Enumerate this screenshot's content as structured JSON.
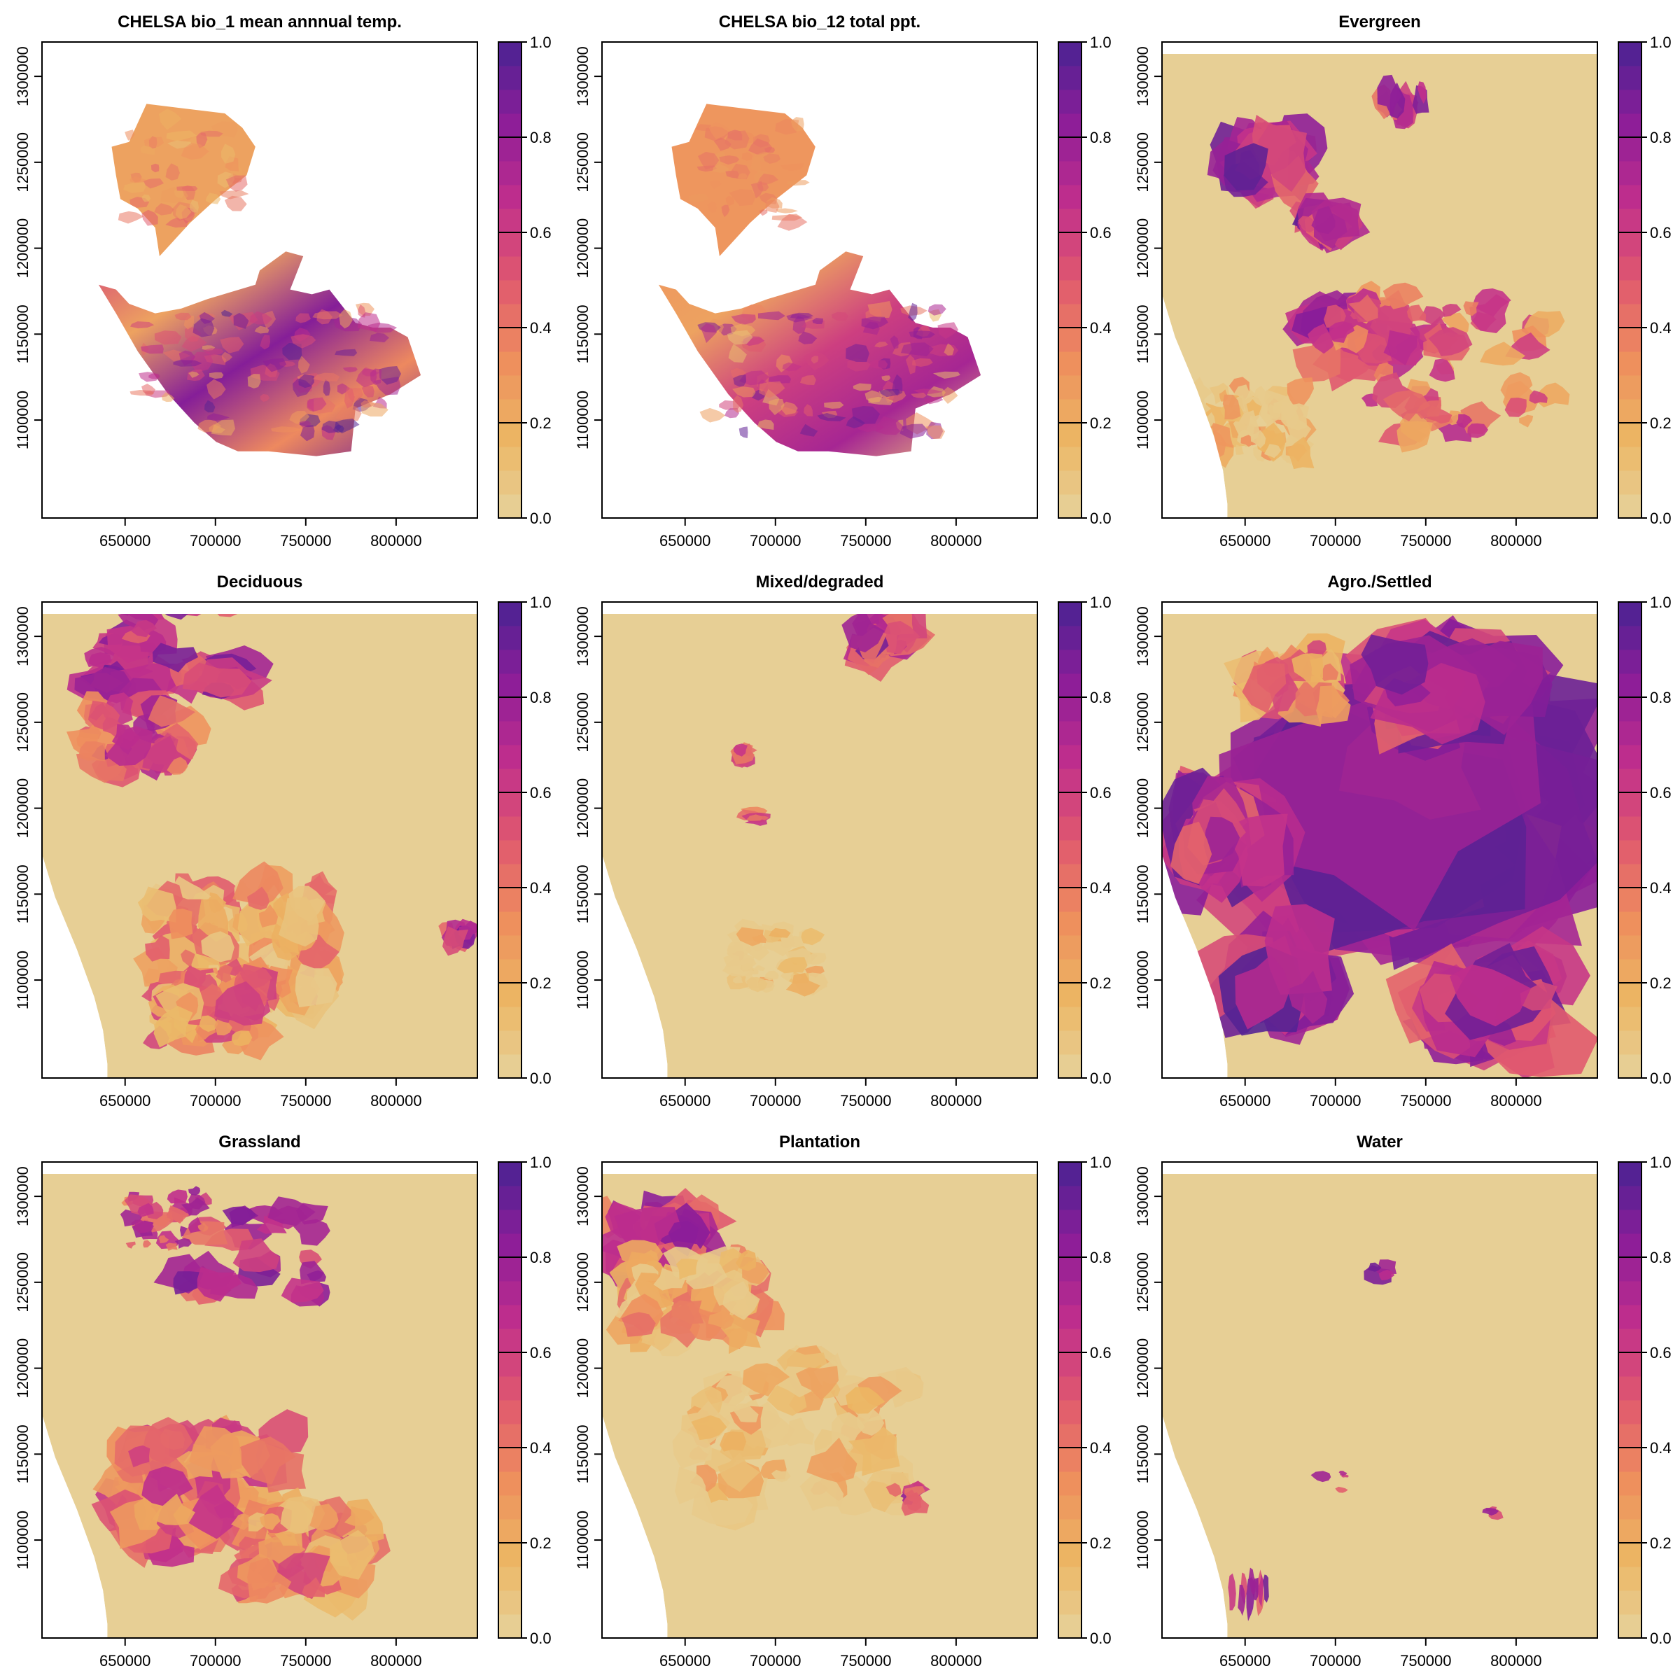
{
  "figure": {
    "panels": [
      {
        "title": "CHELSA bio_1 mean annnual temp.",
        "kind": "climate-temp"
      },
      {
        "title": "CHELSA bio_12 total ppt.",
        "kind": "climate-ppt"
      },
      {
        "title": "Evergreen",
        "kind": "landcover"
      },
      {
        "title": "Deciduous",
        "kind": "landcover"
      },
      {
        "title": "Mixed/degraded",
        "kind": "landcover"
      },
      {
        "title": "Agro./Settled",
        "kind": "landcover"
      },
      {
        "title": "Grassland",
        "kind": "landcover"
      },
      {
        "title": "Plantation",
        "kind": "landcover"
      },
      {
        "title": "Water",
        "kind": "landcover"
      }
    ]
  },
  "chart_data": {
    "type": "heatmap",
    "grid": "off",
    "x_ticks": [
      "650000",
      "700000",
      "750000",
      "800000"
    ],
    "y_ticks": [
      "1100000",
      "1150000",
      "1200000",
      "1250000",
      "1300000"
    ],
    "xlim": [
      604000,
      845000
    ],
    "ylim": [
      1043000,
      1320000
    ],
    "colorbar": {
      "range": [
        0.0,
        1.0
      ],
      "tick_labels": [
        "0.0",
        "0.2",
        "0.4",
        "0.6",
        "0.8",
        "1.0"
      ],
      "colors": [
        "#e6d29c",
        "#ecb663",
        "#ee8e5d",
        "#e0586f",
        "#c02e8c",
        "#8b1d99",
        "#4a2392"
      ]
    },
    "panel_titles": [
      "CHELSA bio_1 mean annnual temp.",
      "CHELSA bio_12 total ppt.",
      "Evergreen",
      "Deciduous",
      "Mixed/degraded",
      "Agro./Settled",
      "Grassland",
      "Plantation",
      "Water"
    ]
  }
}
